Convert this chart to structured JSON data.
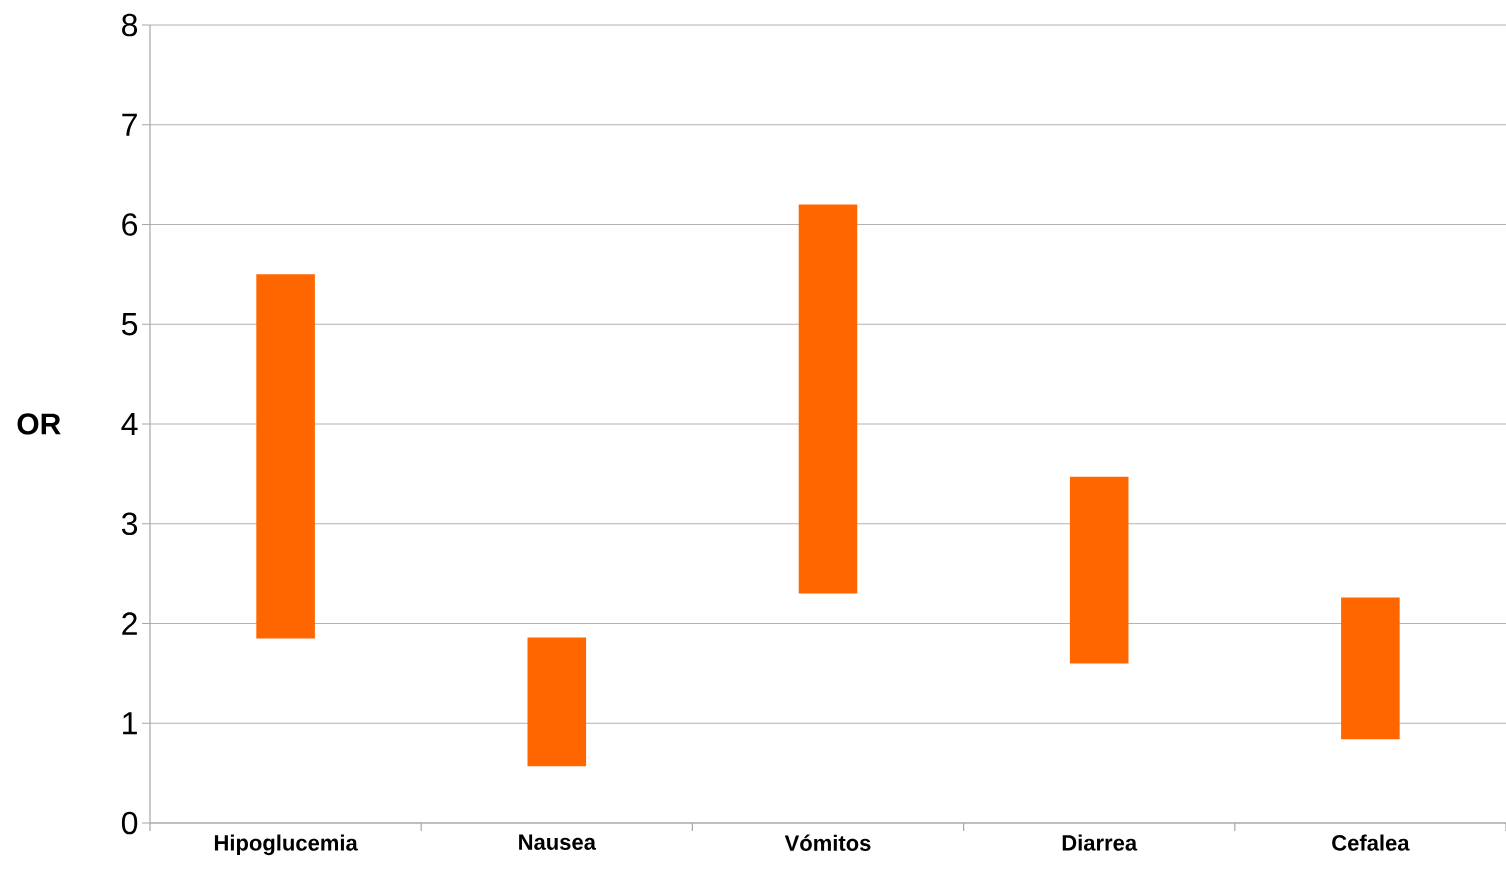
{
  "chart_data": {
    "type": "bar",
    "ylabel": "OR",
    "categories": [
      "Hipoglucemia",
      "Nausea",
      "Vómitos",
      "Diarrea",
      "Cefalea"
    ],
    "base": [
      1.85,
      0.57,
      2.3,
      1.6,
      0.84
    ],
    "values": [
      3.65,
      1.29,
      3.9,
      1.87,
      1.42
    ],
    "color": "#ff6600",
    "ylim": [
      0,
      8
    ],
    "yticks": [
      0,
      1,
      2,
      3,
      4,
      5,
      6,
      7,
      8
    ],
    "grid": "y"
  }
}
